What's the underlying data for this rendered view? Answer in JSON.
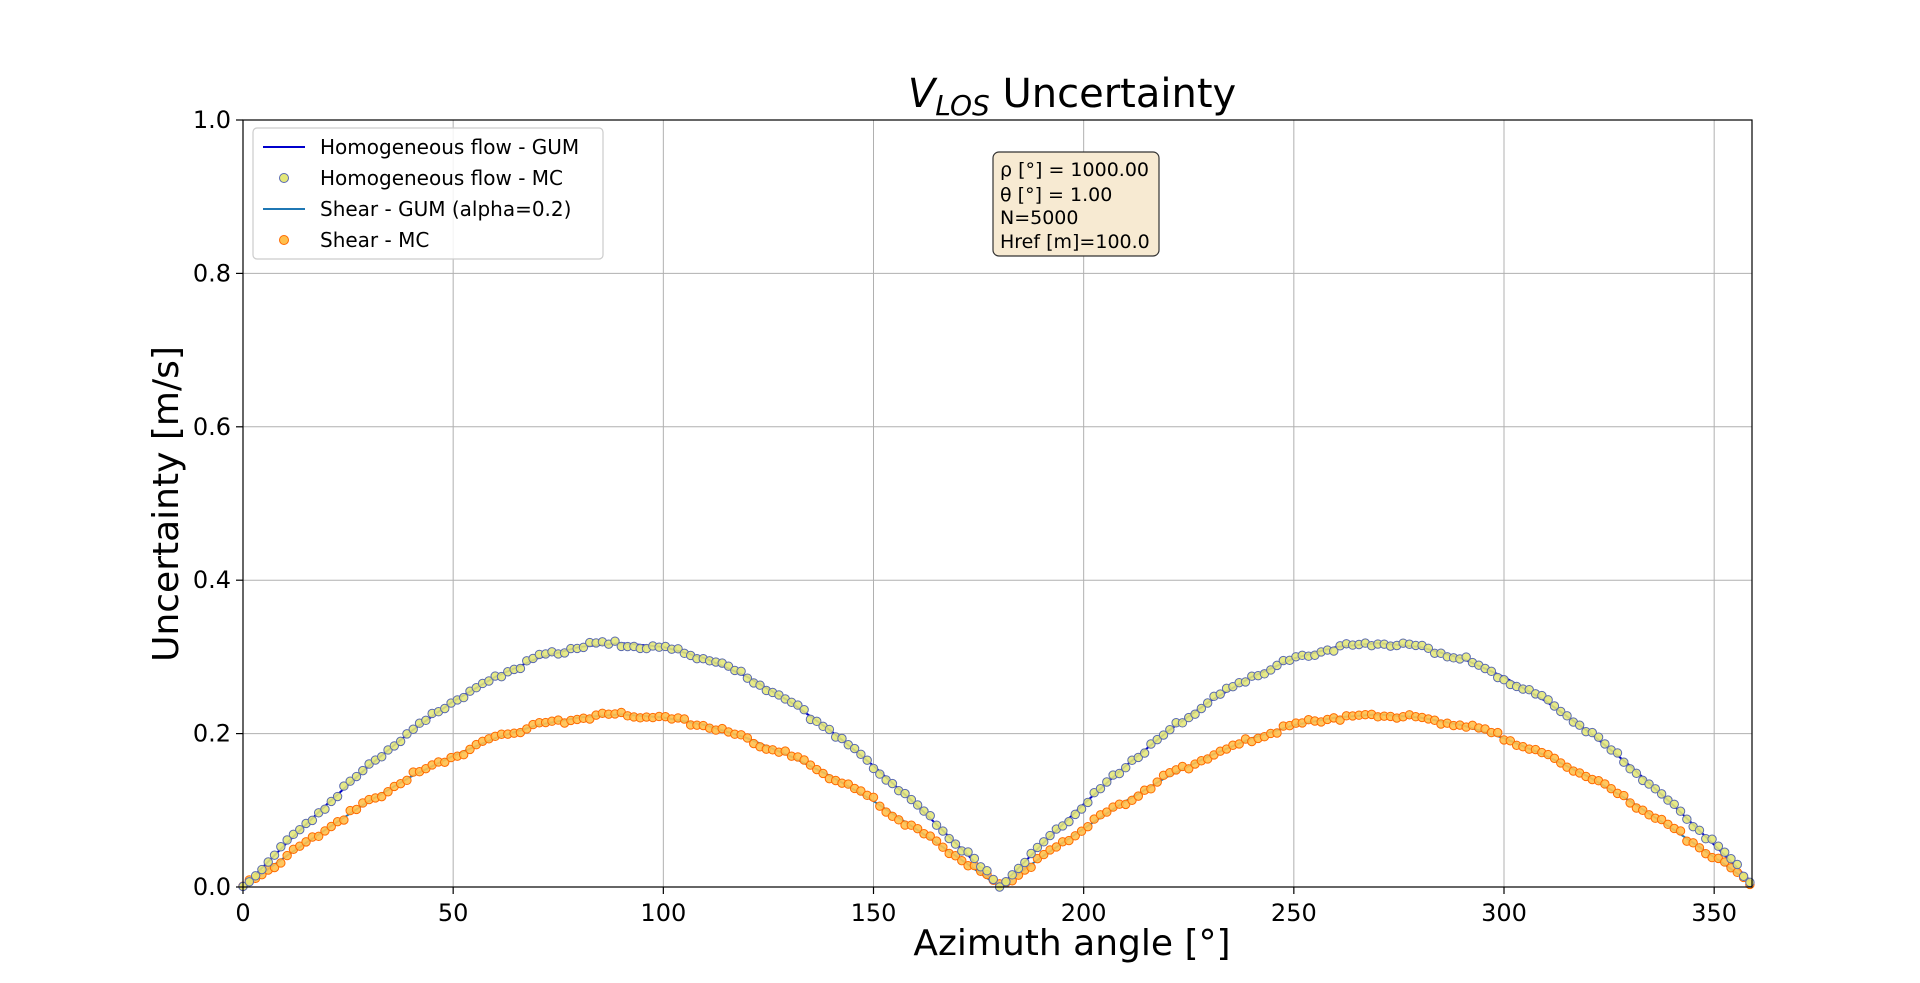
{
  "chart_data": {
    "type": "line",
    "title_main": "V",
    "title_sub": "LOS",
    "title_rest": " Uncertainty",
    "xlabel": "Azimuth angle [°]",
    "ylabel": "Uncertainty [m/s]",
    "xlim": [
      0,
      359
    ],
    "ylim": [
      0,
      1.0
    ],
    "xticks": [
      0,
      50,
      100,
      150,
      200,
      250,
      300,
      350
    ],
    "xtick_labels": [
      "0",
      "50",
      "100",
      "150",
      "200",
      "250",
      "300",
      "350"
    ],
    "yticks": [
      0.0,
      0.2,
      0.4,
      0.6,
      0.8,
      1.0
    ],
    "ytick_labels": [
      "0.0",
      "0.2",
      "0.4",
      "0.6",
      "0.8",
      "1.0"
    ],
    "grid": true,
    "legend_position": "top-left",
    "x": [
      0,
      10,
      20,
      30,
      40,
      50,
      60,
      70,
      80,
      90,
      100,
      110,
      120,
      130,
      140,
      150,
      160,
      170,
      180,
      190,
      200,
      210,
      220,
      230,
      240,
      250,
      260,
      270,
      280,
      290,
      300,
      310,
      320,
      330,
      340,
      350,
      359
    ],
    "series": [
      {
        "name": "Homogeneous flow - GUM",
        "kind": "line",
        "color": "#0000cc",
        "values": [
          0.0,
          0.055,
          0.108,
          0.158,
          0.203,
          0.242,
          0.274,
          0.298,
          0.313,
          0.318,
          0.313,
          0.298,
          0.274,
          0.242,
          0.203,
          0.158,
          0.108,
          0.055,
          0.0,
          0.055,
          0.108,
          0.158,
          0.203,
          0.242,
          0.274,
          0.298,
          0.313,
          0.318,
          0.313,
          0.298,
          0.274,
          0.242,
          0.203,
          0.158,
          0.108,
          0.055,
          0.006
        ]
      },
      {
        "name": "Homogeneous flow - MC",
        "kind": "scatter",
        "color": "#e4e87a",
        "edge": "#5a6ab0",
        "values": [
          0.0,
          0.056,
          0.107,
          0.159,
          0.203,
          0.243,
          0.273,
          0.299,
          0.314,
          0.317,
          0.311,
          0.299,
          0.275,
          0.241,
          0.204,
          0.157,
          0.109,
          0.056,
          0.001,
          0.054,
          0.107,
          0.159,
          0.202,
          0.243,
          0.275,
          0.297,
          0.312,
          0.319,
          0.312,
          0.299,
          0.272,
          0.243,
          0.204,
          0.157,
          0.108,
          0.056,
          0.006
        ]
      },
      {
        "name": "Shear - GUM (alpha=0.2)",
        "kind": "line",
        "color": "#1f77b4",
        "values": [
          0.0,
          0.039,
          0.076,
          0.112,
          0.144,
          0.171,
          0.194,
          0.211,
          0.221,
          0.225,
          0.221,
          0.211,
          0.194,
          0.171,
          0.144,
          0.112,
          0.076,
          0.039,
          0.0,
          0.039,
          0.076,
          0.112,
          0.144,
          0.171,
          0.194,
          0.211,
          0.221,
          0.225,
          0.221,
          0.211,
          0.194,
          0.171,
          0.144,
          0.112,
          0.076,
          0.039,
          0.004
        ]
      },
      {
        "name": "Shear - MC",
        "kind": "scatter",
        "color": "#ffc04d",
        "edge": "#ff6a00",
        "values": [
          0.0,
          0.039,
          0.077,
          0.111,
          0.145,
          0.17,
          0.195,
          0.21,
          0.222,
          0.224,
          0.22,
          0.212,
          0.193,
          0.172,
          0.143,
          0.113,
          0.075,
          0.04,
          0.001,
          0.038,
          0.077,
          0.111,
          0.145,
          0.17,
          0.193,
          0.212,
          0.221,
          0.225,
          0.22,
          0.211,
          0.195,
          0.17,
          0.144,
          0.112,
          0.077,
          0.039,
          0.004
        ]
      }
    ],
    "annotation": {
      "lines": [
        "ρ [°] = 1000.00",
        "θ [°] = 1.00",
        "N=5000",
        "Href [m]=100.0"
      ],
      "box_color": "#f7ead2"
    }
  }
}
